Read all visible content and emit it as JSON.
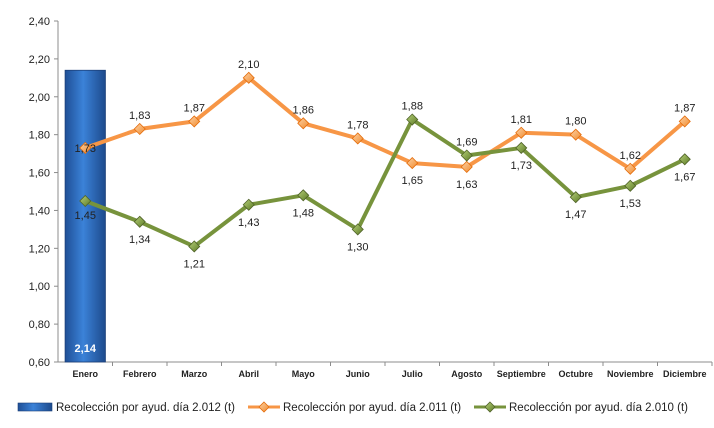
{
  "chart_data": {
    "type": "bar",
    "categories": [
      "Enero",
      "Febrero",
      "Marzo",
      "Abril",
      "Mayo",
      "Junio",
      "Julio",
      "Agosto",
      "Septiembre",
      "Octubre",
      "Noviembre",
      "Diciembre"
    ],
    "yticks": [
      "0,60",
      "0,80",
      "1,00",
      "1,20",
      "1,40",
      "1,60",
      "1,80",
      "2,00",
      "2,20",
      "2,40"
    ],
    "ylim": [
      0.6,
      2.4
    ],
    "grid": false,
    "legend_position": "bottom",
    "series": [
      {
        "name": "Recolección por ayud. día 2.012 (t)",
        "type": "bar",
        "color": "#2e6fc0",
        "values": [
          2.14,
          null,
          null,
          null,
          null,
          null,
          null,
          null,
          null,
          null,
          null,
          null
        ],
        "labels": [
          "2,14"
        ]
      },
      {
        "name": "Recolección por ayud. día 2.011 (t)",
        "type": "line",
        "color": "#f79646",
        "values": [
          1.73,
          1.83,
          1.87,
          2.1,
          1.86,
          1.78,
          1.65,
          1.63,
          1.81,
          1.8,
          1.62,
          1.87
        ],
        "labels": [
          "1,73",
          "1,83",
          "1,87",
          "2,10",
          "1,86",
          "1,78",
          "1,65",
          "1,63",
          "1,81",
          "1,80",
          "1,62",
          "1,87"
        ]
      },
      {
        "name": "Recolección por ayud. día 2.010 (t)",
        "type": "line",
        "color": "#77933c",
        "values": [
          1.45,
          1.34,
          1.21,
          1.43,
          1.48,
          1.3,
          1.88,
          1.69,
          1.73,
          1.47,
          1.53,
          1.67
        ],
        "labels": [
          "1,45",
          "1,34",
          "1,21",
          "1,43",
          "1,48",
          "1,30",
          "1,88",
          "1,69",
          "1,73",
          "1,47",
          "1,53",
          "1,67"
        ]
      }
    ]
  }
}
